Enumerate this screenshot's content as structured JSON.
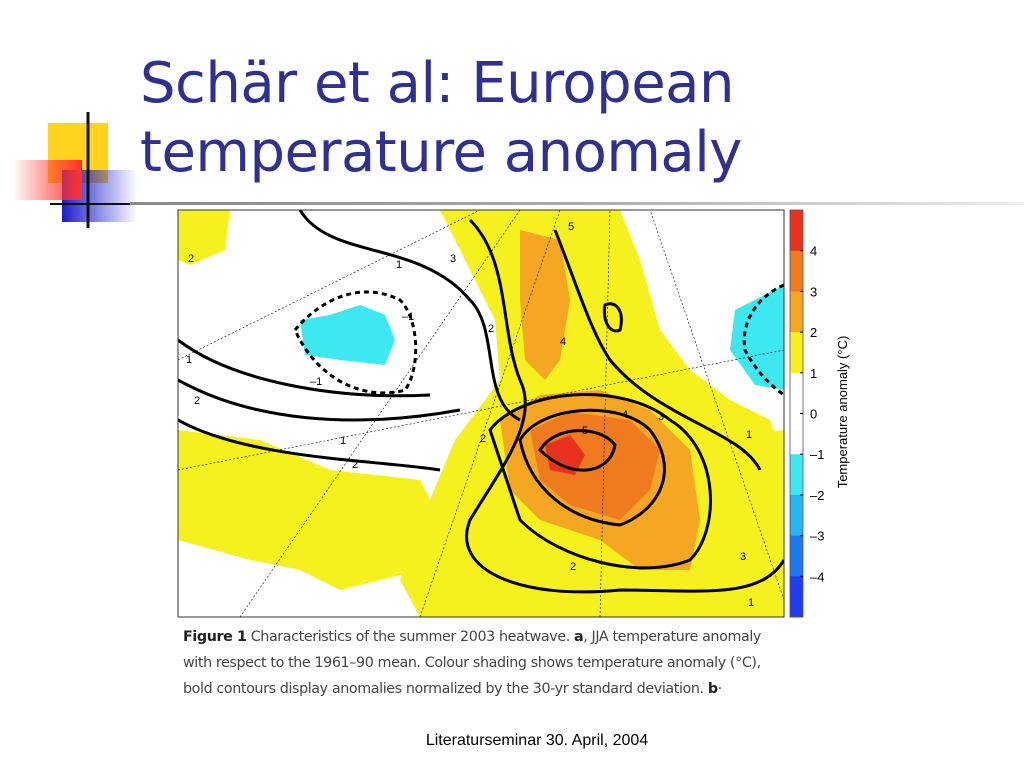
{
  "title": [
    "Schär et al: European",
    "temperature anomaly"
  ],
  "figure": {
    "colorbar": {
      "label": "Temperature anomaly (°C)",
      "lim": [
        -5,
        5
      ],
      "ticks": [
        4,
        3,
        2,
        1,
        0,
        {
          "value": -1,
          "label": "–1"
        },
        {
          "value": -2,
          "label": "–2"
        },
        {
          "value": -3,
          "label": "–3"
        },
        {
          "value": -4,
          "label": "–4"
        }
      ],
      "colors": [
        "#e8321e",
        "#f07a1e",
        "#f5a623",
        "#f5f01e",
        "#ffffff",
        "#ffffff",
        "#3ee8f0",
        "#28b4f0",
        "#1e78f0",
        "#1e3cf0"
      ]
    },
    "contour_labels": [
      "2",
      "3",
      "5",
      "1",
      "–1",
      "2",
      "2",
      "–1",
      "4",
      "1",
      "2",
      "1",
      "2",
      "5",
      "4",
      "3",
      "2",
      "3",
      "1",
      "1"
    ],
    "caption": [
      "Figure 1",
      " Characteristics of the summer 2003 heatwave. ",
      "a",
      ", JJA temperature anomaly with respect to the 1961–90 mean. Colour shading shows temperature anomaly (°C), bold contours display anomalies normalized by the 30-yr standard deviation. ",
      "b",
      "·"
    ]
  },
  "footer": "Literaturseminar 30. April, 2004"
}
